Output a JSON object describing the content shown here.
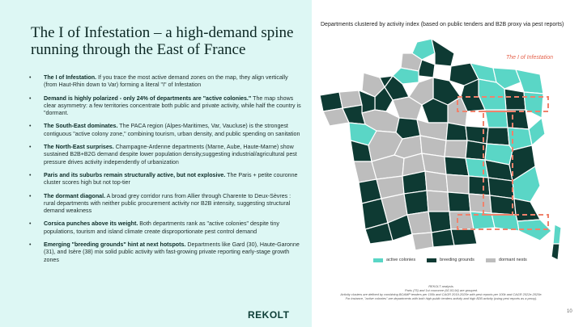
{
  "slide": {
    "title": "The I of Infestation – a high-demand spine running through the East of France",
    "bullets": [
      {
        "bold": "The I of Infestation.",
        "text": " If you trace the most active demand zones on the map, they align vertically (from Haut-Rhin down to Var) forming a literal \"I\" of Infestation"
      },
      {
        "bold": "Demand is highly polarized - only 24% of departments are \"active colonies.\"",
        "text": " The map shows clear asymmetry: a few territories concentrate both public and private activity, while half the country is \"dormant."
      },
      {
        "bold": "The South-East dominates.",
        "text": " The PACA region (Alpes-Maritimes, Var, Vaucluse) is the strongest contiguous \"active colony zone,\" combining tourism, urban density, and public spending on sanitation"
      },
      {
        "bold": "The North-East surprises.",
        "text": " Champagne-Ardenne departments (Marne, Aube, Haute-Marne) show sustained B2B+B2G demand despite lower population density,suggesting industrial/agricultural pest pressure drives activity independently of urbanization"
      },
      {
        "bold": "Paris and its suburbs remain structurally active, but not explosive.",
        "text": " The Paris + petite couronne cluster scores high but not top-tier"
      },
      {
        "bold": "The dormant diagonal.",
        "text": " A broad grey corridor runs from Allier through Charente to Deux-Sèvres : rural departments with neither public procurement activity nor B2B intensity, suggesting structural demand weakness"
      },
      {
        "bold": "Corsica punches above its weight.",
        "text": " Both departments rank as \"active colonies\" despite tiny populations, tourism and island climate create disproportionate pest control demand"
      },
      {
        "bold": "Emerging \"breeding grounds\" hint at next hotspots.",
        "text": " Departments like Gard (30), Haute-Garonne (31), and Isère (38) mix solid public activity with fast-growing private reporting  early-stage growth zones"
      }
    ],
    "logo_text": "REKOLT",
    "page_number": "10"
  },
  "map": {
    "title": "Departments clustered by activity index (based on public tenders and B2B proxy via pest reports)",
    "annotation": "The I of Infestation",
    "legend": [
      {
        "label": "active colonies",
        "color": "#5ad6c6"
      },
      {
        "label": "breeding grounds",
        "color": "#0e3a33"
      },
      {
        "label": "dormant nests",
        "color": "#bdbdbd"
      }
    ],
    "source_lines": [
      "REKOLT analysis.",
      "Paris (75) and 1st couronne (92,93,94) are grouped.",
      "Activity clusters are defined by combining BOAMP tenders per 100k and CAGR 2019-2025e with pest reports per 100k and CAGR 2022e-2025e.",
      "For instance, \"active colonies\" are departments with both high public tenders activity and high B2B activity (using pest reports as a proxy)."
    ]
  }
}
